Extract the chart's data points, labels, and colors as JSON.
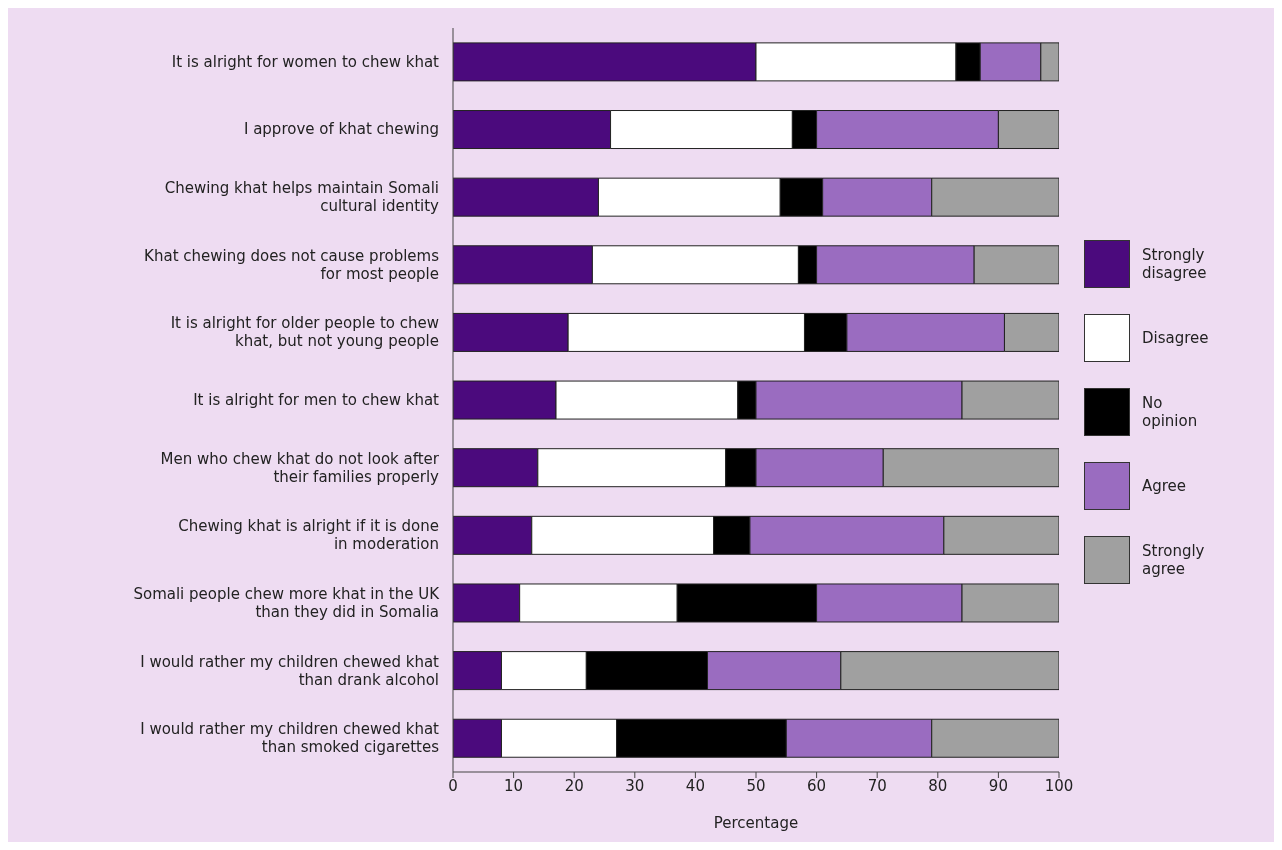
{
  "chart_data": {
    "type": "bar",
    "orientation": "horizontal",
    "stacked": true,
    "xlabel": "Percentage",
    "xlim": [
      0,
      100
    ],
    "xticks": [
      0,
      10,
      20,
      30,
      40,
      50,
      60,
      70,
      80,
      90,
      100
    ],
    "grid": false,
    "legend": "right",
    "categories": [
      "It is alright for women to chew khat",
      "I approve of khat chewing",
      "Chewing khat helps maintain Somali cultural identity",
      "Khat chewing does not cause problems for most people",
      "It is alright for older people to chew khat, but not young people",
      "It is alright for men to chew khat",
      "Men who chew khat do not look after their families properly",
      "Chewing khat is alright if it is done in moderation",
      "Somali people chew more khat in the UK than they did in Somalia",
      "I would rather my children chewed khat than drank alcohol",
      "I would rather my children chewed khat than smoked cigarettes"
    ],
    "series": [
      {
        "name": "Strongly disagree",
        "color": "#4b0a7d",
        "values": [
          50,
          26,
          24,
          23,
          19,
          17,
          14,
          13,
          11,
          8,
          8
        ]
      },
      {
        "name": "Disagree",
        "color": "#ffffff",
        "values": [
          33,
          30,
          30,
          34,
          39,
          30,
          31,
          30,
          26,
          14,
          19
        ]
      },
      {
        "name": "No opinion",
        "color": "#000000",
        "values": [
          4,
          4,
          7,
          3,
          7,
          3,
          5,
          6,
          23,
          20,
          28
        ]
      },
      {
        "name": "Agree",
        "color": "#9a6cc0",
        "values": [
          10,
          30,
          18,
          26,
          26,
          34,
          21,
          32,
          24,
          22,
          24
        ]
      },
      {
        "name": "Strongly agree",
        "color": "#a0a0a0",
        "values": [
          3,
          10,
          21,
          14,
          9,
          16,
          29,
          19,
          16,
          36,
          21
        ]
      }
    ]
  }
}
